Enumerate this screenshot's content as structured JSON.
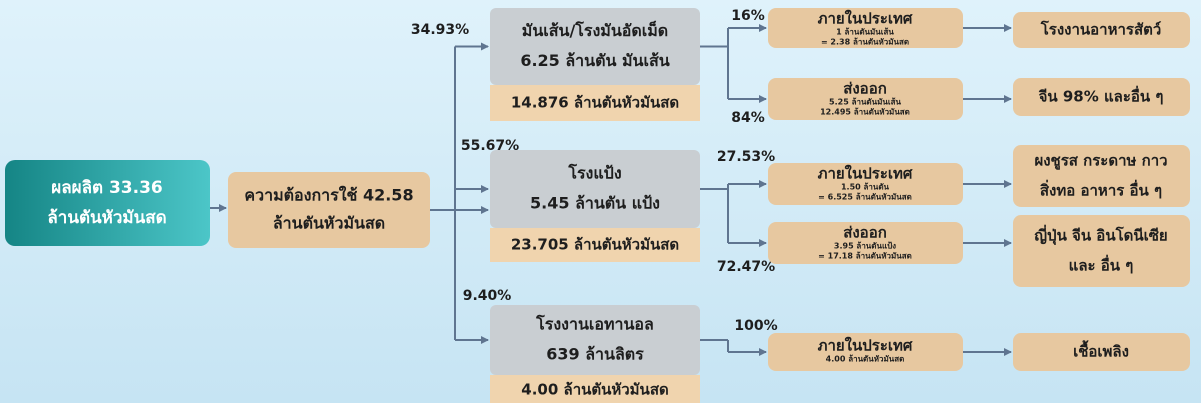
{
  "source": {
    "lines": [
      "ผลผลิต 33.36",
      "ล้านตันหัวมันสด"
    ]
  },
  "demand": {
    "lines": [
      "ความต้องการใช้ 42.58",
      "ล้านตันหัวมันสด"
    ]
  },
  "branches": [
    {
      "percent": "34.93%",
      "lines": [
        "มันเส้น/โรงมันอัดเม็ด",
        "6.25 ล้านตัน มันเส้น"
      ],
      "fresh": "14.876 ล้านตันหัวมันสด",
      "outputs": [
        {
          "percent": "16%",
          "title": "ภายในประเทศ",
          "details": [
            "1 ล้านตันมันเส้น",
            "= 2.38 ล้านตันหัวมันสด"
          ],
          "destination": [
            "โรงงานอาหารสัตว์"
          ]
        },
        {
          "percent": "84%",
          "title": "ส่งออก",
          "details": [
            "5.25 ล้านตันมันเส้น",
            "12.495 ล้านตันหัวมันสด"
          ],
          "destination": [
            "จีน 98% และอื่น ๆ"
          ]
        }
      ]
    },
    {
      "percent": "55.67%",
      "lines": [
        "โรงแป้ง",
        "5.45 ล้านตัน แป้ง"
      ],
      "fresh": "23.705 ล้านตันหัวมันสด",
      "outputs": [
        {
          "percent": "27.53%",
          "title": "ภายในประเทศ",
          "details": [
            "1.50 ล้านตัน",
            "= 6.525 ล้านตันหัวมันสด"
          ],
          "destination": [
            "ผงชูรส กระดาษ กาว",
            "สิ่งทอ อาหาร อื่น ๆ"
          ]
        },
        {
          "percent": "72.47%",
          "title": "ส่งออก",
          "details": [
            "3.95 ล้านตันแป้ง",
            "= 17.18 ล้านตันหัวมันสด"
          ],
          "destination": [
            "ญี่ปุ่น จีน อินโดนีเซีย",
            "และ อื่น ๆ"
          ]
        }
      ]
    },
    {
      "percent": "9.40%",
      "lines": [
        "โรงงานเอทานอล",
        "639 ล้านลิตร"
      ],
      "fresh": "4.00 ล้านตันหัวมันสด",
      "outputs": [
        {
          "percent": "100%",
          "title": "ภายในประเทศ",
          "details": [
            "4.00 ล้านตันหัวมันสด"
          ],
          "destination": [
            "เชื้อเพลิง"
          ]
        }
      ]
    }
  ]
}
